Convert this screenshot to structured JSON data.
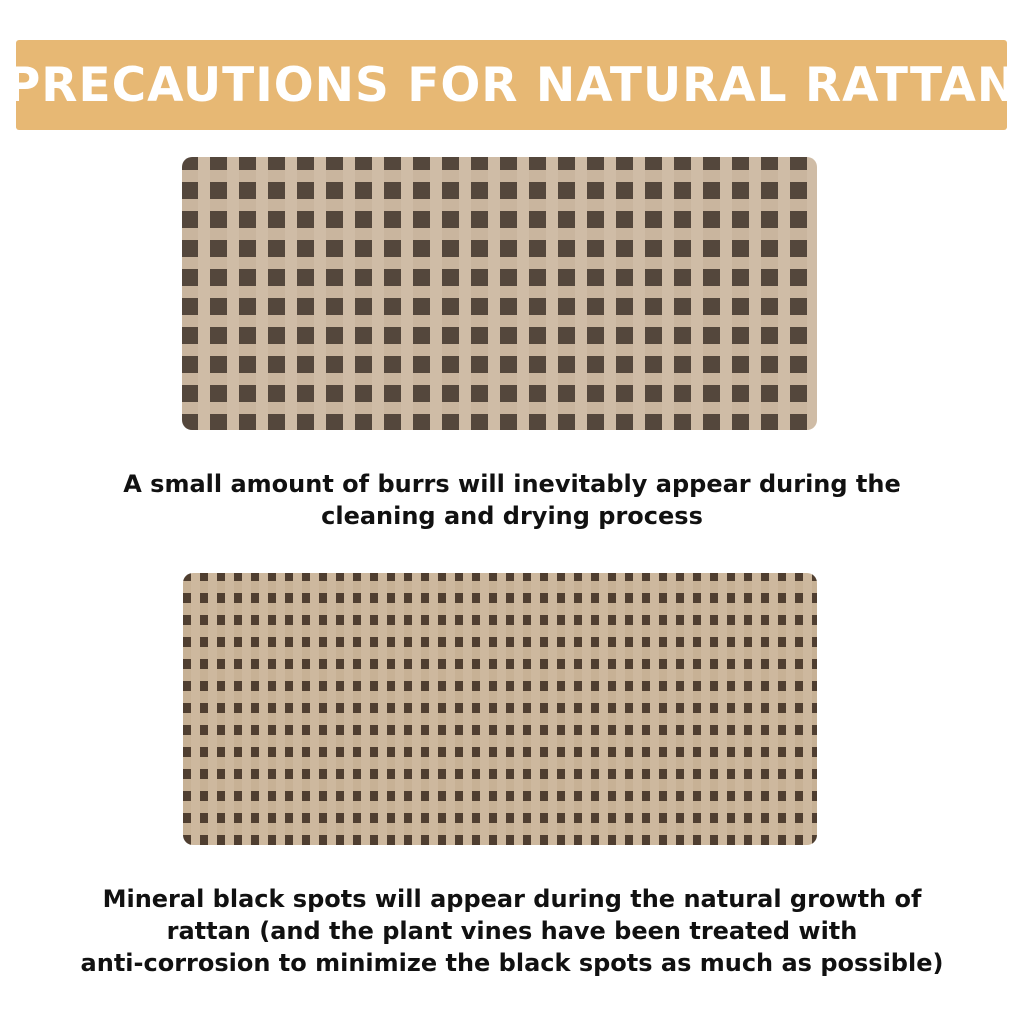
{
  "banner": {
    "title": "PRECAUTIONS FOR NATURAL RATTAN",
    "color": "#e7b874"
  },
  "sections": [
    {
      "caption_lines": [
        "A small amount of burrs will inevitably appear during the",
        "cleaning and drying process"
      ]
    },
    {
      "caption_lines": [
        "Mineral black spots will appear during the natural growth of",
        "rattan (and the plant vines have been treated with",
        "anti-corrosion to minimize the black spots as much as possible)"
      ]
    }
  ]
}
